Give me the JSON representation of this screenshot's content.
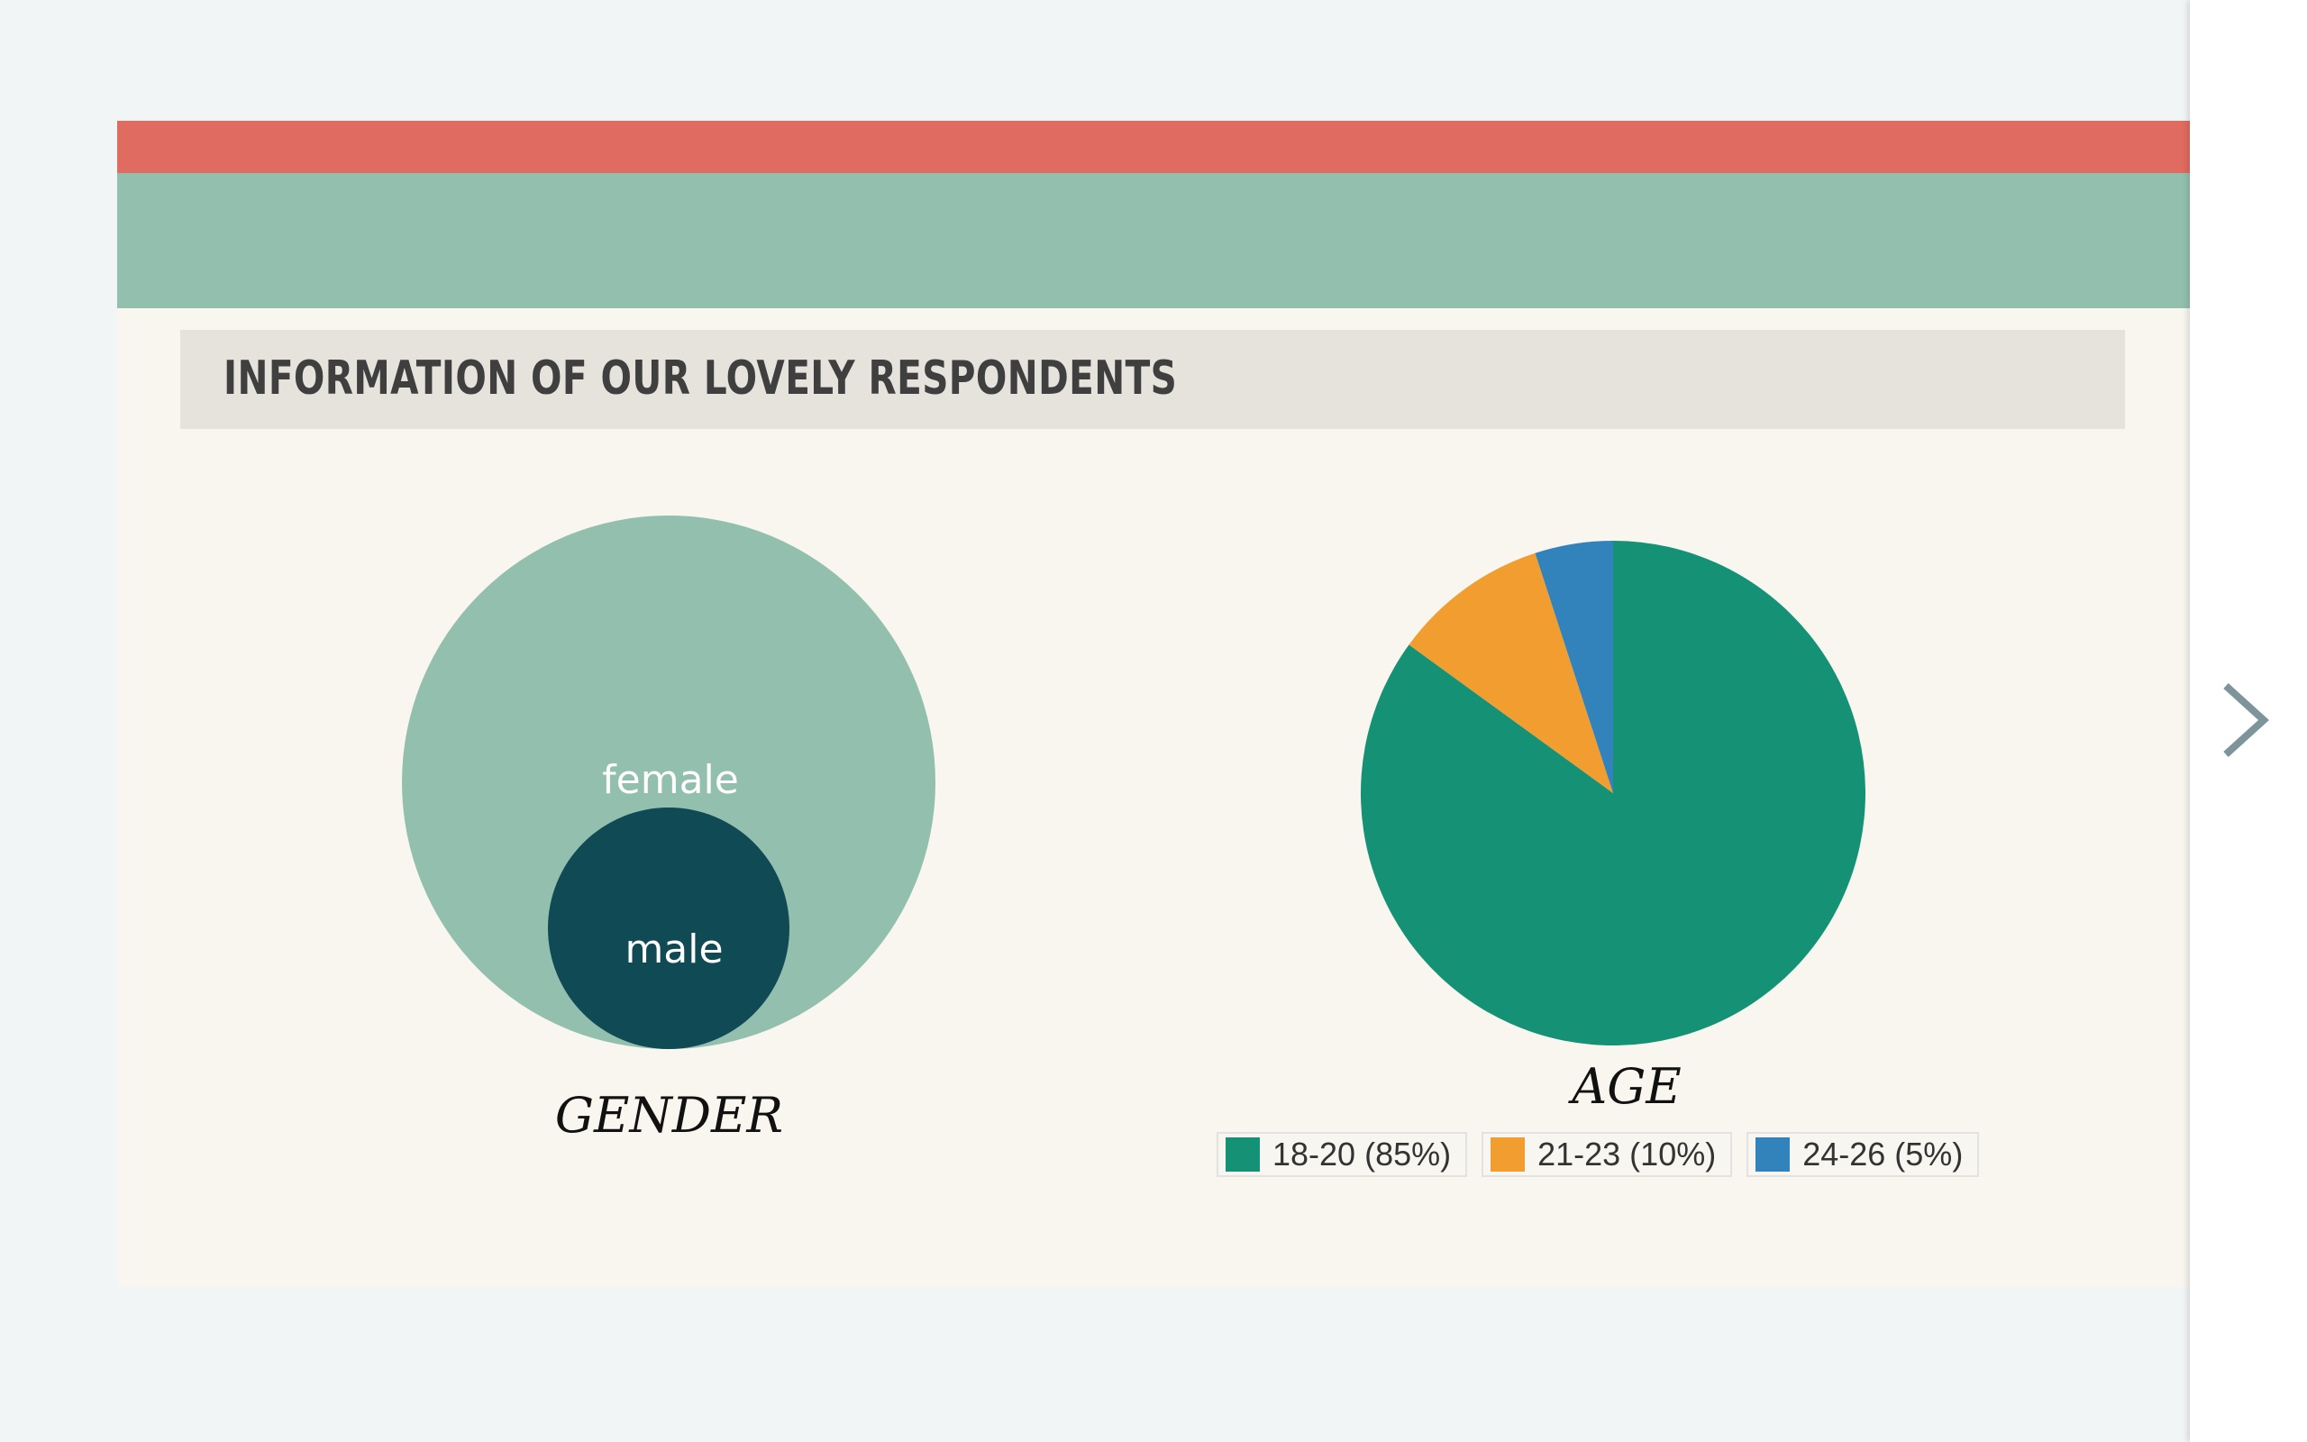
{
  "section_title": "INFORMATION OF OUR LOVELY RESPONDENTS",
  "colors": {
    "red_band": "#e06b60",
    "green_band": "#93bfaf",
    "female": "#93bfaf",
    "male": "#0f4a55",
    "arrow": "#7d949b"
  },
  "chart_data": [
    {
      "type": "bubble",
      "title": "GENDER",
      "series": [
        {
          "name": "female",
          "color": "#93bfaf"
        },
        {
          "name": "male",
          "color": "#0f4a55"
        }
      ]
    },
    {
      "type": "pie",
      "title": "AGE",
      "categories": [
        "18-20",
        "21-23",
        "24-26"
      ],
      "values": [
        85,
        10,
        5
      ],
      "legend": [
        "18-20 (85%)",
        "21-23 (10%)",
        "24-26 (5%)"
      ],
      "colors": [
        "#159276",
        "#f19d30",
        "#3283bb"
      ],
      "legend_position": "bottom"
    }
  ],
  "icons": {
    "next": "chevron-right-icon"
  }
}
